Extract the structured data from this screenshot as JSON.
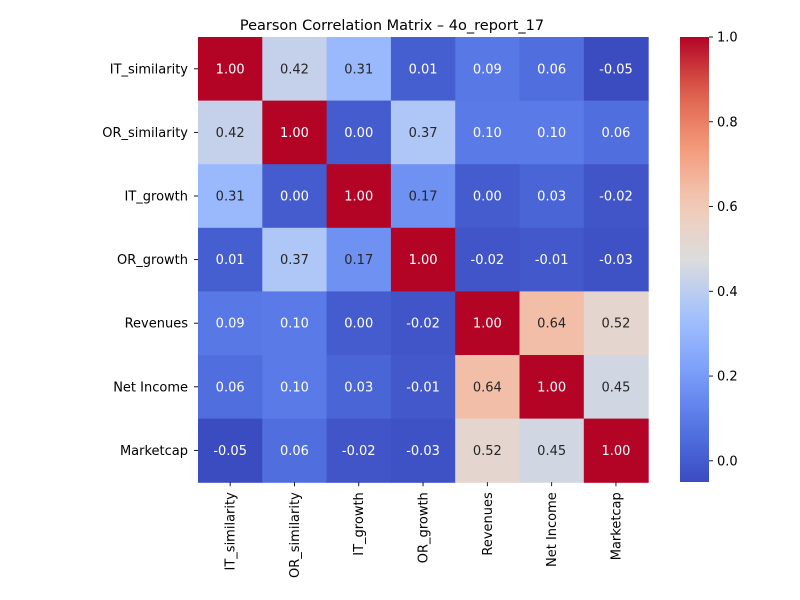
{
  "chart_data": {
    "type": "heatmap",
    "title": "Pearson Correlation Matrix – 4o_report_17",
    "row_labels": [
      "IT_similarity",
      "OR_similarity",
      "IT_growth",
      "OR_growth",
      "Revenues",
      "Net Income",
      "Marketcap"
    ],
    "col_labels": [
      "IT_similarity",
      "OR_similarity",
      "IT_growth",
      "OR_growth",
      "Revenues",
      "Net Income",
      "Marketcap"
    ],
    "values": [
      [
        1.0,
        0.42,
        0.31,
        0.01,
        0.09,
        0.06,
        -0.05
      ],
      [
        0.42,
        1.0,
        -0.0,
        0.37,
        0.1,
        0.1,
        0.06
      ],
      [
        0.31,
        -0.0,
        1.0,
        0.17,
        0.0,
        0.03,
        -0.02
      ],
      [
        0.01,
        0.37,
        0.17,
        1.0,
        -0.02,
        -0.01,
        -0.03
      ],
      [
        0.09,
        0.1,
        0.0,
        -0.02,
        1.0,
        0.64,
        0.52
      ],
      [
        0.06,
        0.1,
        0.03,
        -0.01,
        0.64,
        1.0,
        0.45
      ],
      [
        -0.05,
        0.06,
        -0.02,
        -0.03,
        0.52,
        0.45,
        1.0
      ]
    ],
    "colormap": "coolwarm",
    "vmin": -0.05,
    "vmax": 1.0,
    "colorbar_ticks": [
      0.0,
      0.2,
      0.4,
      0.6,
      0.8,
      1.0
    ],
    "annotate": true,
    "value_format": "2 decimals"
  }
}
